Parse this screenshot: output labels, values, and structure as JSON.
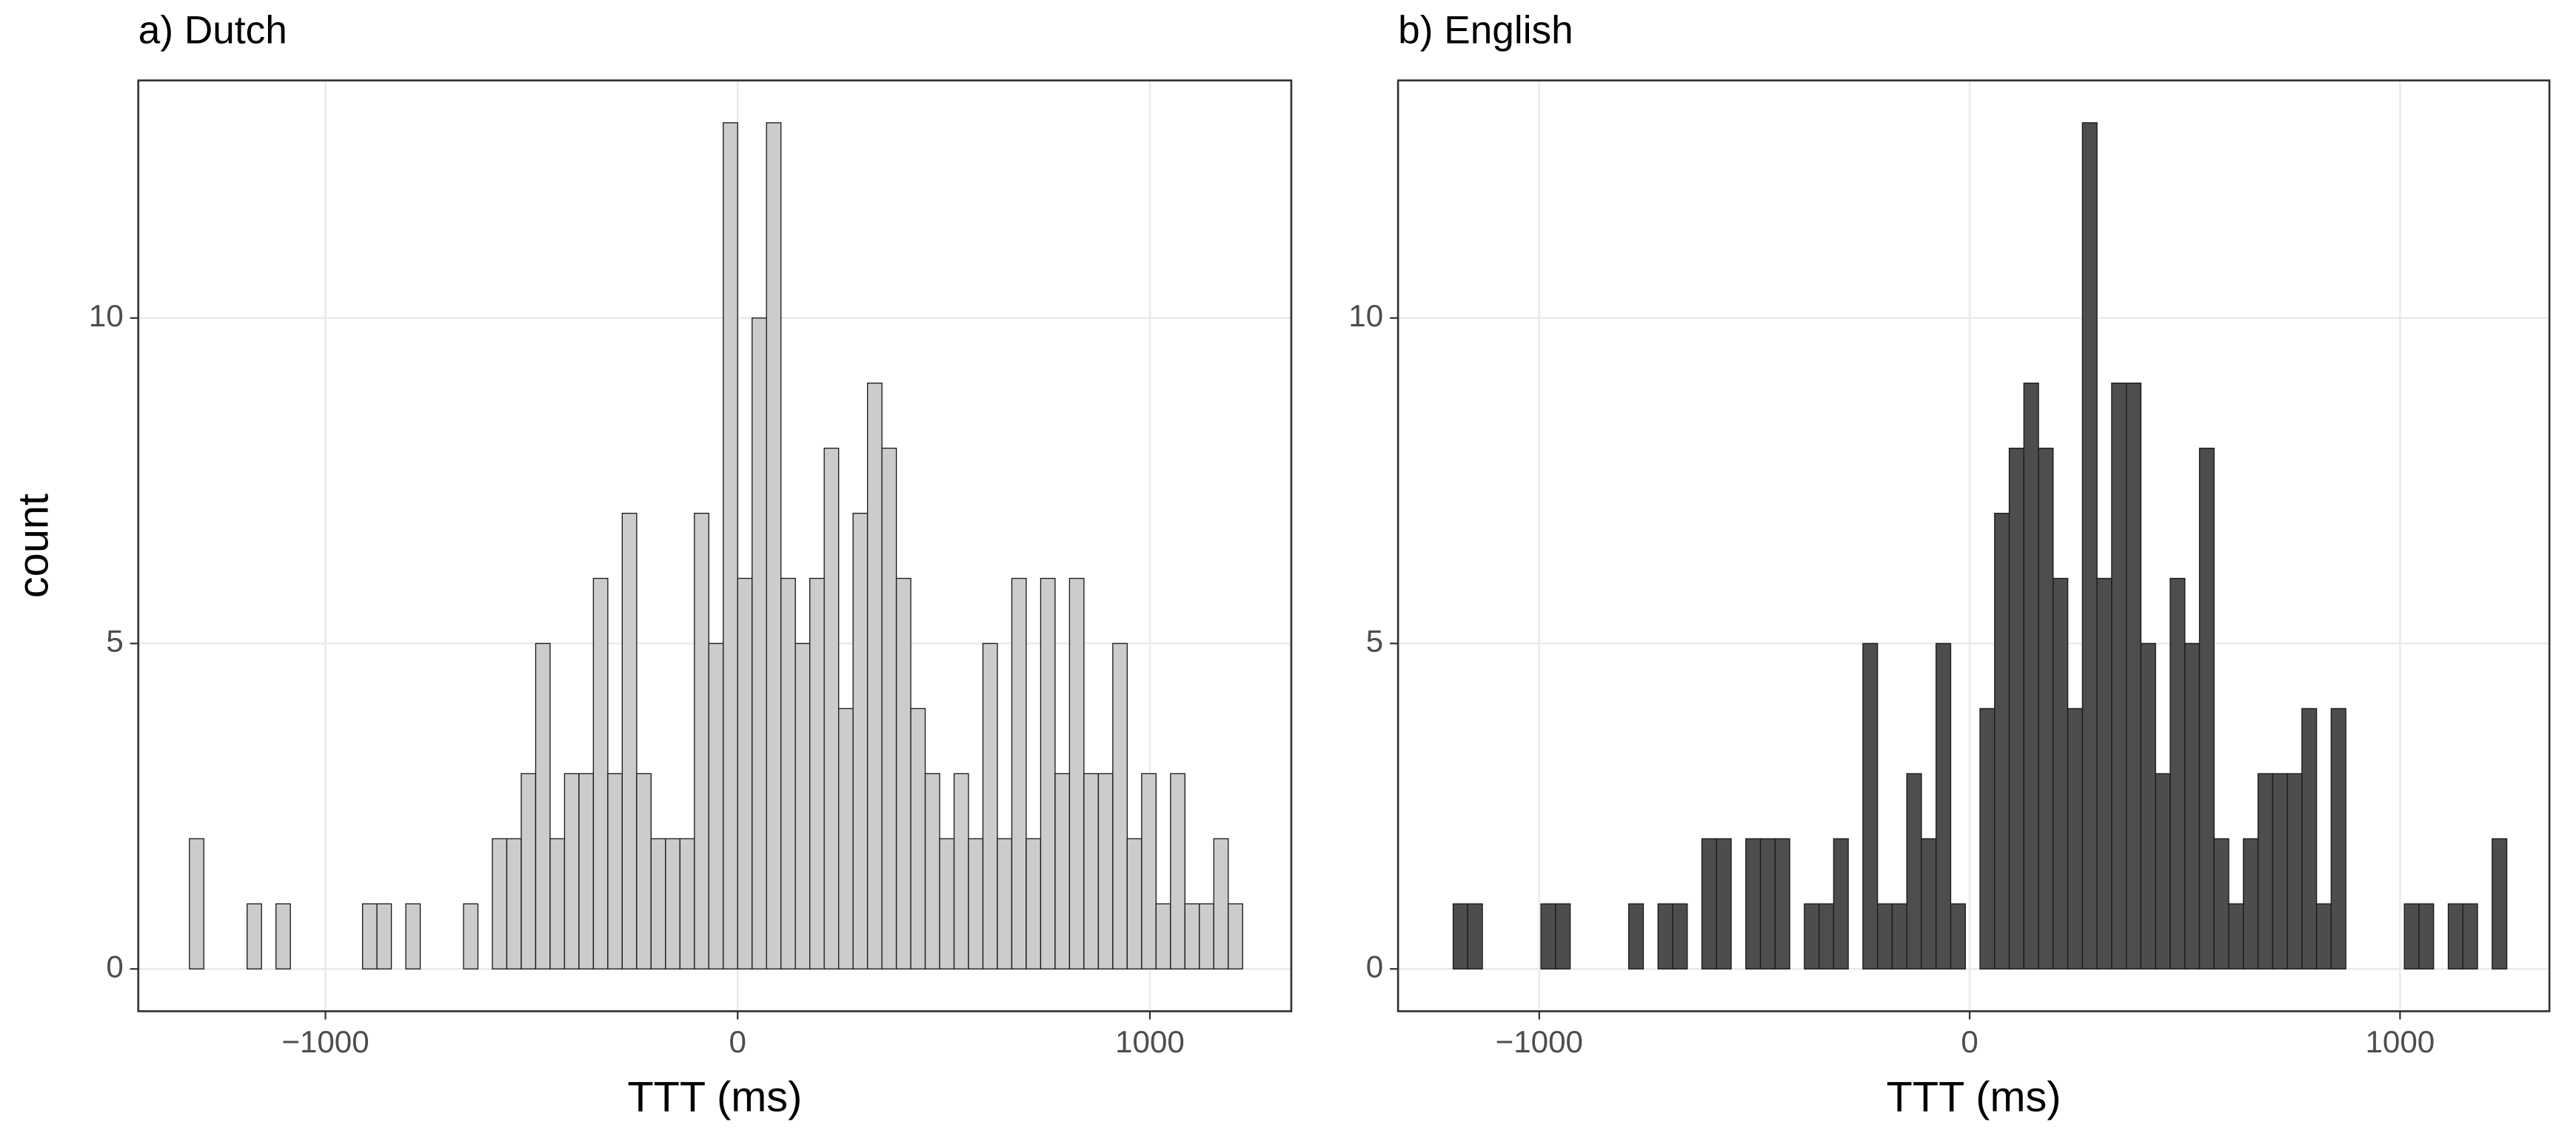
{
  "chart_data": [
    {
      "type": "histogram",
      "title": "a) Dutch",
      "x_label": "TTT (ms)",
      "y_label": "count",
      "color": "#cccccc",
      "grid": true,
      "bins": [
        -1330,
        -1295,
        -1260,
        -1225,
        -1190,
        -1155,
        -1120,
        -1085,
        -1050,
        -1015,
        -980,
        -945,
        -910,
        -875,
        -840,
        -805,
        -770,
        -735,
        -700,
        -665,
        -630,
        -595,
        -560,
        -525,
        -490,
        -455,
        -420,
        -385,
        -350,
        -315,
        -280,
        -245,
        -210,
        -175,
        -140,
        -105,
        -70,
        -35,
        0,
        35,
        70,
        105,
        140,
        175,
        210,
        245,
        280,
        315,
        350,
        385,
        420,
        455,
        490,
        525,
        560,
        595,
        630,
        665,
        700,
        735,
        770,
        805,
        840,
        875,
        910,
        945,
        980,
        1015,
        1050,
        1085,
        1120,
        1155,
        1190,
        1225
      ],
      "values": [
        2,
        0,
        0,
        0,
        1,
        0,
        1,
        0,
        0,
        0,
        0,
        0,
        1,
        1,
        0,
        1,
        0,
        0,
        0,
        1,
        0,
        2,
        2,
        3,
        5,
        2,
        3,
        3,
        6,
        3,
        7,
        3,
        2,
        2,
        2,
        7,
        5,
        13,
        6,
        10,
        13,
        6,
        5,
        6,
        8,
        4,
        7,
        9,
        8,
        6,
        4,
        3,
        2,
        3,
        2,
        5,
        2,
        6,
        2,
        6,
        3,
        6,
        3,
        3,
        5,
        2,
        3,
        1,
        3,
        1,
        1,
        2,
        1
      ],
      "xlim": [
        -1454,
        1343
      ],
      "ylim": [
        -0.65,
        13.65
      ],
      "xticks": [
        {
          "value": -1000,
          "label": "−1000"
        },
        0,
        1000
      ],
      "yticks": [
        0,
        5,
        10
      ]
    },
    {
      "type": "histogram",
      "title": "b) English",
      "x_label": "TTT (ms)",
      "color": "#4d4d4d",
      "grid": true,
      "bins": [
        -1200,
        -1166,
        -1132,
        -1098,
        -1064,
        -1030,
        -996,
        -962,
        -928,
        -894,
        -860,
        -826,
        -792,
        -758,
        -724,
        -690,
        -656,
        -622,
        -588,
        -554,
        -520,
        -486,
        -452,
        -418,
        -384,
        -350,
        -316,
        -282,
        -248,
        -214,
        -180,
        -146,
        -112,
        -78,
        -44,
        -10,
        24,
        58,
        92,
        126,
        160,
        194,
        228,
        262,
        296,
        330,
        364,
        398,
        432,
        466,
        500,
        534,
        568,
        602,
        636,
        670,
        704,
        738,
        772,
        806,
        840,
        874,
        908,
        942,
        976,
        1010,
        1044,
        1078,
        1112,
        1146,
        1180,
        1214,
        1248
      ],
      "values": [
        1,
        1,
        0,
        0,
        0,
        0,
        1,
        1,
        0,
        0,
        0,
        0,
        1,
        0,
        1,
        1,
        0,
        2,
        2,
        0,
        2,
        2,
        2,
        0,
        1,
        1,
        2,
        0,
        5,
        1,
        1,
        3,
        2,
        5,
        1,
        0,
        4,
        7,
        8,
        9,
        8,
        6,
        4,
        13,
        6,
        9,
        9,
        5,
        3,
        6,
        5,
        8,
        2,
        1,
        2,
        3,
        3,
        3,
        4,
        1,
        4,
        0,
        0,
        0,
        0,
        1,
        1,
        0,
        1,
        1,
        0,
        2
      ],
      "xlim": [
        -1328,
        1347
      ],
      "ylim": [
        -0.65,
        13.65
      ],
      "xticks": [
        {
          "value": -1000,
          "label": "−1000"
        },
        0,
        1000
      ],
      "yticks": [
        0,
        5,
        10
      ]
    }
  ]
}
